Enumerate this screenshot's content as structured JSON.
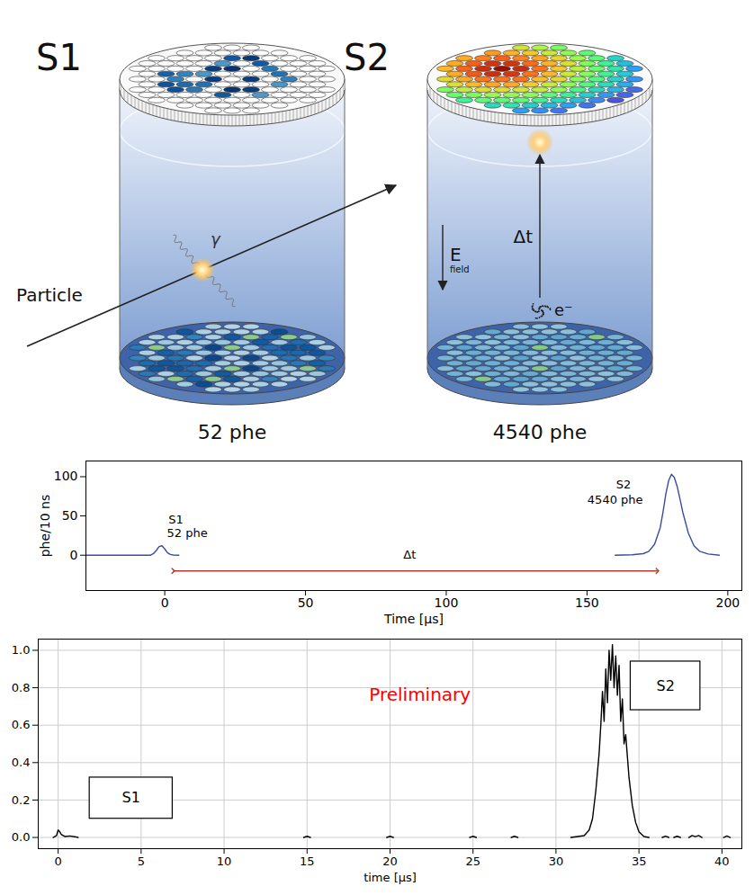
{
  "diagram": {
    "panels": [
      {
        "title": "S1",
        "count": "52 phe"
      },
      {
        "title": "S2",
        "count": "4540 phe"
      }
    ],
    "particle": "Particle",
    "photon": "γ",
    "drift_time": "Δt",
    "field": "E",
    "field_subscript": "field",
    "electron": "e⁻"
  },
  "chart_data": [
    {
      "type": "line",
      "x": [
        -28,
        -10,
        -5,
        -4,
        -3,
        -2,
        -1,
        0,
        1,
        2,
        3,
        5,
        90,
        160,
        166,
        170,
        172,
        174,
        176,
        177,
        178,
        179,
        180,
        181,
        182,
        183,
        184,
        186,
        188,
        190,
        193,
        197
      ],
      "series": [
        {
          "color": "#3a4ba8",
          "values": [
            0,
            0,
            0,
            2,
            6,
            11,
            12,
            8,
            3,
            1,
            0.3,
            0,
            null,
            0,
            0.5,
            2,
            5,
            14,
            35,
            55,
            78,
            95,
            103,
            99,
            88,
            72,
            55,
            28,
            12,
            5,
            1.5,
            0
          ]
        }
      ],
      "xlim": [
        -28,
        205
      ],
      "xticks": [
        0,
        50,
        100,
        150,
        200
      ],
      "ylim": [
        -45,
        120
      ],
      "yticks": [
        0,
        50,
        100
      ],
      "xlabel": "Time [μs]",
      "ylabel": "phe/10 ns",
      "annotations": [
        {
          "text": "S1",
          "x": 4,
          "y": 45
        },
        {
          "text": "52 phe",
          "x": 8,
          "y": 28
        },
        {
          "text": "S2",
          "x": 163,
          "y": 90
        },
        {
          "text": "4540 phe",
          "x": 160,
          "y": 70
        },
        {
          "text": "Δt",
          "x": 87,
          "y": 0
        }
      ],
      "arrow": {
        "x1": 3,
        "x2": 175,
        "y": -20
      }
    },
    {
      "type": "line",
      "x": [
        -0.3,
        -0.1,
        0,
        0.1,
        0.2,
        0.4,
        0.7,
        1.0,
        1.2,
        8,
        14.8,
        15,
        15.2,
        17,
        19.8,
        20,
        20.2,
        22,
        24.8,
        25,
        25.2,
        26,
        27.3,
        27.5,
        27.7,
        29,
        30.9,
        31.3,
        31.7,
        32.0,
        32.2,
        32.4,
        32.6,
        32.7,
        32.8,
        32.9,
        33.0,
        33.1,
        33.2,
        33.3,
        33.4,
        33.5,
        33.6,
        33.7,
        33.8,
        33.9,
        34.0,
        34.1,
        34.2,
        34.4,
        34.6,
        34.8,
        35.0,
        35.3,
        35.6,
        36,
        36.4,
        36.6,
        36.8,
        37,
        37.1,
        37.3,
        37.5,
        37.7,
        38.0,
        38.2,
        38.4,
        38.6,
        38.8,
        39.5,
        40.1,
        40.3,
        40.5
      ],
      "series": [
        {
          "color": "#000000",
          "values": [
            0,
            0.01,
            0.04,
            0.03,
            0.015,
            0.005,
            0.008,
            0.004,
            0,
            null,
            0,
            0.006,
            0,
            null,
            0,
            0.006,
            0,
            null,
            0,
            0.006,
            0,
            null,
            0,
            0.006,
            0,
            null,
            0,
            0.005,
            0.01,
            0.04,
            0.1,
            0.25,
            0.45,
            0.6,
            0.78,
            0.62,
            0.9,
            0.72,
            1.0,
            0.84,
            1.03,
            0.8,
            0.97,
            0.76,
            0.92,
            0.62,
            0.74,
            0.5,
            0.55,
            0.32,
            0.17,
            0.08,
            0.03,
            0.005,
            0,
            null,
            0,
            0.007,
            0,
            null,
            0,
            0.006,
            0,
            null,
            0,
            0.01,
            0.004,
            0.01,
            0,
            null,
            0,
            0.008,
            0
          ]
        }
      ],
      "xlim": [
        -1.2,
        41.2
      ],
      "xticks": [
        0,
        5,
        10,
        15,
        20,
        25,
        30,
        35,
        40
      ],
      "ylim": [
        -0.06,
        1.06
      ],
      "yticks": [
        {
          "value": 0,
          "label": "0.0"
        },
        0.2,
        0.4,
        0.6,
        0.8,
        {
          "value": 1,
          "label": "1.0"
        }
      ],
      "grid": true,
      "xlabel": "time [μs]",
      "annotations": [
        {
          "text": "Preliminary",
          "x": 21.8,
          "y": 0.76,
          "color": "#ff0000"
        },
        {
          "text": "S1",
          "x": [
            1.9,
            6.9
          ],
          "y": [
            0.1,
            0.32
          ]
        },
        {
          "text": "S2",
          "x": [
            34.5,
            38.7
          ],
          "y": [
            0.68,
            0.94
          ]
        }
      ]
    }
  ]
}
